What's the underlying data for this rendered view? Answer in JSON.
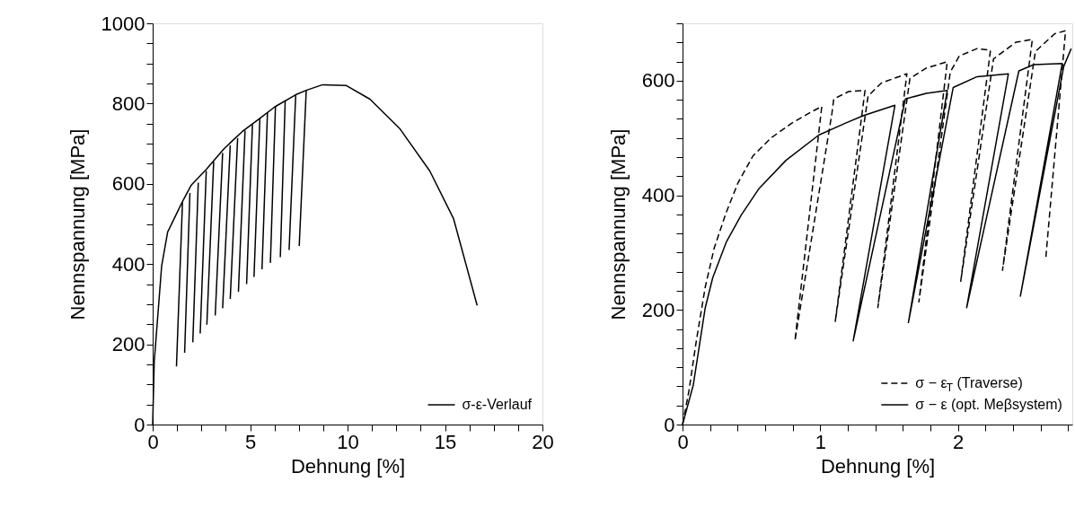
{
  "chart_data": [
    {
      "type": "line",
      "xlabel": "Dehnung [%]",
      "ylabel": "Nennspannung [MPa]",
      "xlim": [
        0,
        20
      ],
      "ylim": [
        0,
        1000
      ],
      "xticks": [
        0,
        {
          "value": 1.25,
          "label": null
        },
        {
          "value": 2.5,
          "label": null
        },
        {
          "value": 3.75,
          "label": null
        },
        5,
        {
          "value": 6.25,
          "label": null
        },
        {
          "value": 7.5,
          "label": null
        },
        {
          "value": 8.75,
          "label": null
        },
        10,
        {
          "value": 11.25,
          "label": null
        },
        {
          "value": 12.5,
          "label": null
        },
        {
          "value": 13.75,
          "label": null
        },
        15,
        {
          "value": 16.25,
          "label": null
        },
        {
          "value": 17.5,
          "label": null
        },
        {
          "value": 18.75,
          "label": null
        },
        20
      ],
      "yticks": [
        0,
        {
          "value": 50,
          "label": null
        },
        {
          "value": 100,
          "label": null
        },
        {
          "value": 150,
          "label": null
        },
        200,
        {
          "value": 250,
          "label": null
        },
        {
          "value": 300,
          "label": null
        },
        {
          "value": 350,
          "label": null
        },
        400,
        {
          "value": 450,
          "label": null
        },
        {
          "value": 500,
          "label": null
        },
        {
          "value": 550,
          "label": null
        },
        600,
        {
          "value": 650,
          "label": null
        },
        {
          "value": 700,
          "label": null
        },
        {
          "value": 750,
          "label": null
        },
        800,
        {
          "value": 850,
          "label": null
        },
        {
          "value": 900,
          "label": null
        },
        {
          "value": 950,
          "label": null
        },
        1000
      ],
      "grid": false,
      "legend": "bottom right",
      "series": [
        {
          "name": "σ-ε-Verlauf",
          "color": "#000000",
          "line_style": "solid",
          "x": [
            0,
            0.08,
            0.46,
            0.77,
            1.51,
            1.97,
            2.75,
            3.67,
            4.59,
            5.5,
            6.27,
            7.34,
            7.88,
            8.72,
            9.94,
            11.15,
            12.69,
            14.22,
            15.44,
            16.65
          ],
          "values": [
            0,
            156,
            395,
            480,
            554,
            596,
            636,
            688,
            730,
            763,
            792,
            822,
            833,
            847,
            845,
            811,
            737,
            632,
            513,
            297
          ]
        },
        {
          "color": "#000000",
          "line_style": "solid",
          "x": [
            1.53,
            1.22
          ],
          "values": [
            554,
            145
          ]
        },
        {
          "color": "#000000",
          "line_style": "solid",
          "x": [
            1.91,
            1.64
          ],
          "values": [
            577,
            179
          ]
        },
        {
          "color": "#000000",
          "line_style": "solid",
          "x": [
            2.34,
            2.06
          ],
          "values": [
            603,
            205
          ]
        },
        {
          "color": "#000000",
          "line_style": "solid",
          "x": [
            2.75,
            2.44
          ],
          "values": [
            632,
            227
          ]
        },
        {
          "color": "#000000",
          "line_style": "solid",
          "x": [
            3.13,
            2.78
          ],
          "values": [
            655,
            249
          ]
        },
        {
          "color": "#000000",
          "line_style": "solid",
          "x": [
            3.59,
            3.21
          ],
          "values": [
            677,
            272
          ]
        },
        {
          "color": "#000000",
          "line_style": "solid",
          "x": [
            3.98,
            3.59
          ],
          "values": [
            696,
            290
          ]
        },
        {
          "color": "#000000",
          "line_style": "solid",
          "x": [
            4.36,
            3.98
          ],
          "values": [
            714,
            313
          ]
        },
        {
          "color": "#000000",
          "line_style": "solid",
          "x": [
            4.74,
            4.4
          ],
          "values": [
            733,
            331
          ]
        },
        {
          "color": "#000000",
          "line_style": "solid",
          "x": [
            5.12,
            4.82
          ],
          "values": [
            748,
            350
          ]
        },
        {
          "color": "#000000",
          "line_style": "solid",
          "x": [
            5.5,
            5.2
          ],
          "values": [
            763,
            368
          ]
        },
        {
          "color": "#000000",
          "line_style": "solid",
          "x": [
            5.89,
            5.61
          ],
          "values": [
            777,
            387
          ]
        },
        {
          "color": "#000000",
          "line_style": "solid",
          "x": [
            6.3,
            6.04
          ],
          "values": [
            792,
            403
          ]
        },
        {
          "color": "#000000",
          "line_style": "solid",
          "x": [
            6.8,
            6.55
          ],
          "values": [
            807,
            417
          ]
        },
        {
          "color": "#000000",
          "line_style": "solid",
          "x": [
            7.34,
            7.0
          ],
          "values": [
            822,
            435
          ]
        },
        {
          "color": "#000000",
          "line_style": "solid",
          "x": [
            7.88,
            7.52
          ],
          "values": [
            833,
            445
          ]
        }
      ]
    },
    {
      "type": "line",
      "xlabel": "Dehnung [%]",
      "ylabel": "Nennspannung [MPa]",
      "xlim": [
        0,
        2.83
      ],
      "ylim": [
        0,
        700
      ],
      "xticks": [
        0,
        {
          "value": 0.2,
          "label": null
        },
        {
          "value": 0.4,
          "label": null
        },
        {
          "value": 0.6,
          "label": null
        },
        {
          "value": 0.8,
          "label": null
        },
        1,
        {
          "value": 1.2,
          "label": null
        },
        {
          "value": 1.4,
          "label": null
        },
        {
          "value": 1.6,
          "label": null
        },
        {
          "value": 1.8,
          "label": null
        },
        2,
        {
          "value": 2.2,
          "label": null
        },
        {
          "value": 2.4,
          "label": null
        },
        {
          "value": 2.6,
          "label": null
        },
        {
          "value": 2.8,
          "label": null
        }
      ],
      "yticks": [
        0,
        {
          "value": 33.3,
          "label": null
        },
        {
          "value": 66.7,
          "label": null
        },
        {
          "value": 100,
          "label": null
        },
        {
          "value": 133.3,
          "label": null
        },
        {
          "value": 166.7,
          "label": null
        },
        200,
        {
          "value": 233.3,
          "label": null
        },
        {
          "value": 266.7,
          "label": null
        },
        {
          "value": 300,
          "label": null
        },
        {
          "value": 333.3,
          "label": null
        },
        {
          "value": 366.7,
          "label": null
        },
        400,
        {
          "value": 433.3,
          "label": null
        },
        {
          "value": 466.7,
          "label": null
        },
        {
          "value": 500,
          "label": null
        },
        {
          "value": 533.3,
          "label": null
        },
        {
          "value": 566.7,
          "label": null
        },
        600,
        {
          "value": 633.3,
          "label": null
        },
        {
          "value": 666.7,
          "label": null
        },
        {
          "value": 700,
          "label": null
        }
      ],
      "grid": false,
      "legend": "bottom right",
      "series": [
        {
          "name": "σ − ε$_{T}$ (Traverse)",
          "color": "#000000",
          "line_style": "dashed",
          "x": [
            0,
            0.046,
            0.1,
            0.165,
            0.23,
            0.317,
            0.403,
            0.512,
            0.642,
            0.794,
            0.924,
            1.011,
            0.816,
            1.084,
            1.098,
            1.206,
            1.325,
            1.109,
            1.347,
            1.444,
            1.629,
            1.418,
            1.651,
            1.77,
            1.922,
            1.716,
            1.944,
            2.009,
            2.139,
            2.236,
            2.02,
            2.258,
            2.42,
            2.54,
            2.323,
            2.562,
            2.703,
            2.781,
            2.638
          ],
          "values": [
            0,
            58,
            146,
            240,
            308,
            370,
            422,
            469,
            500,
            526,
            544,
            555,
            146,
            542,
            568,
            581,
            583,
            180,
            573,
            596,
            612,
            204,
            604,
            622,
            633,
            214,
            615,
            643,
            656,
            653,
            250,
            638,
            667,
            672,
            269,
            651,
            682,
            687,
            292
          ]
        },
        {
          "name": "σ − ε (opt. Meβsystem)",
          "color": "#000000",
          "line_style": "solid",
          "x": [
            0,
            0.078,
            0.165,
            0.219,
            0.317,
            0.425,
            0.556,
            0.751,
            0.989,
            1.184,
            1.314,
            1.542,
            1.239,
            1.618,
            1.77,
            1.922,
            1.64,
            1.965,
            2.139,
            2.366,
            2.063,
            2.442,
            2.55,
            2.757,
            2.453,
            2.768,
            2.822
          ],
          "values": [
            0,
            69,
            204,
            256,
            318,
            365,
            412,
            461,
            505,
            526,
            539,
            557,
            146,
            568,
            578,
            583,
            178,
            588,
            607,
            612,
            204,
            617,
            628,
            630,
            224,
            625,
            656
          ]
        }
      ]
    }
  ]
}
